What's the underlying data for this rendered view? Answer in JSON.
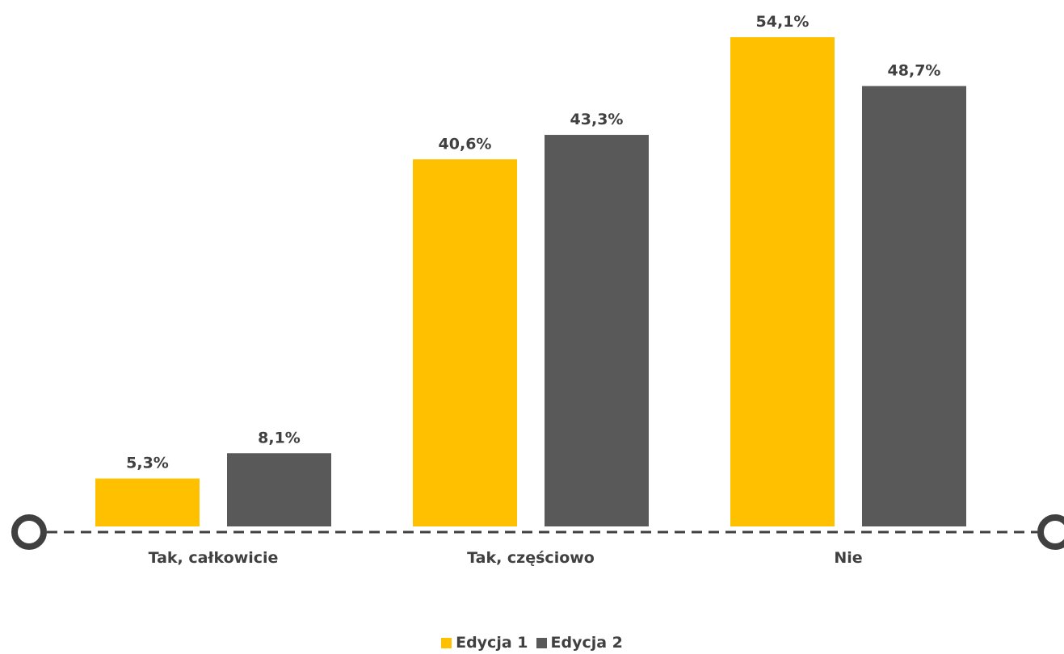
{
  "chart_data": {
    "type": "bar",
    "categories": [
      "Tak, całkowicie",
      "Tak, częściowo",
      "Nie"
    ],
    "series": [
      {
        "name": "Edycja 1",
        "values": [
          5.3,
          40.6,
          54.1
        ],
        "labels": [
          "5,3%",
          "40,6%",
          "54,1%"
        ],
        "color": "#FFC000"
      },
      {
        "name": "Edycja 2",
        "values": [
          8.1,
          43.3,
          48.7
        ],
        "labels": [
          "8,1%",
          "43,3%",
          "48,7%"
        ],
        "color": "#595959"
      }
    ],
    "ylim": [
      0,
      60
    ],
    "grid": false,
    "legend": "bottom"
  }
}
